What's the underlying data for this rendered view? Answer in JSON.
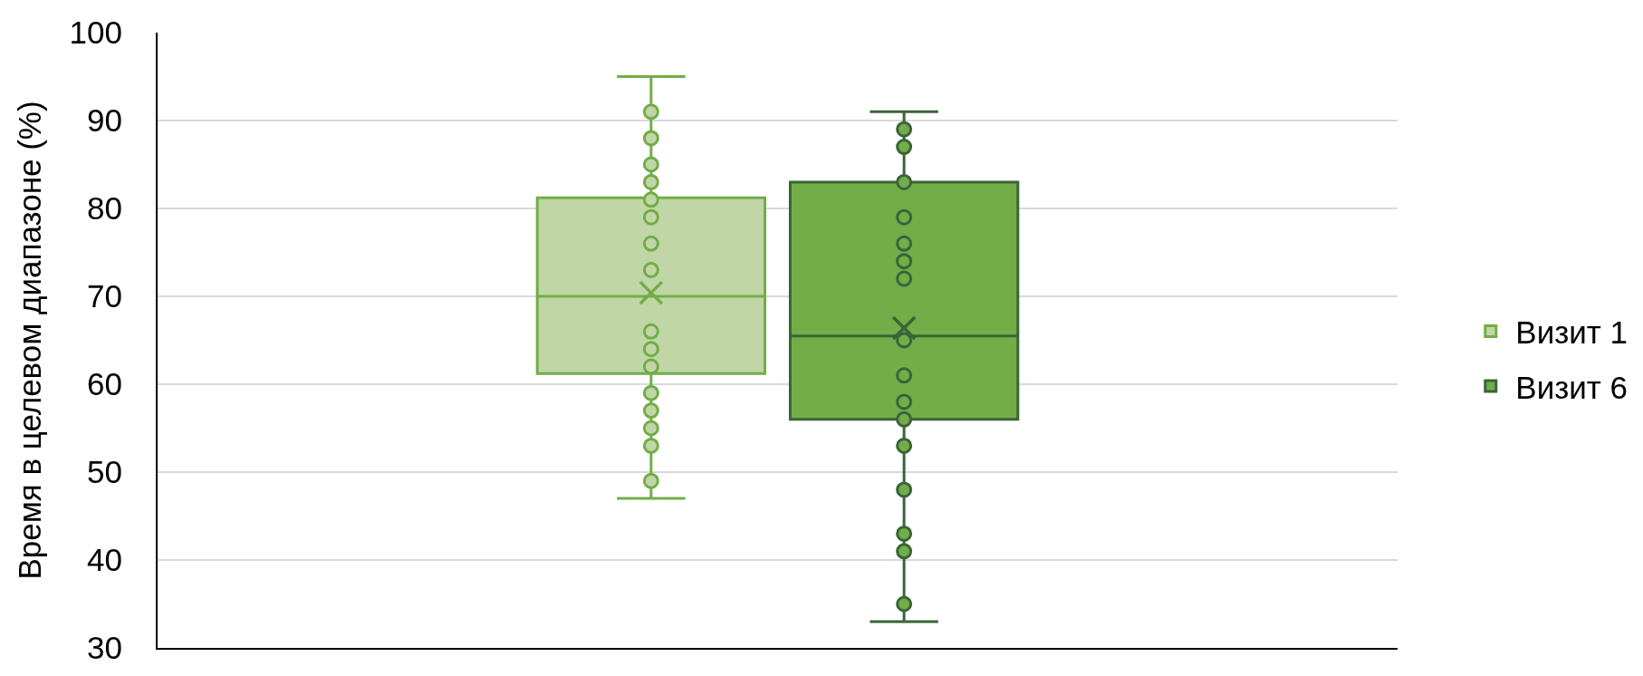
{
  "chart_data": {
    "type": "box",
    "ylabel": "Время в целевом диапазоне (%)",
    "categories": [
      null
    ],
    "series": [
      {
        "name": "Визит 1",
        "color": "#c1d6a7",
        "boxes": [
          {
            "low": 47,
            "q1": 61.2,
            "median": 70,
            "q3": 81.2,
            "high": 95,
            "mean": 70.4
          }
        ]
      },
      {
        "name": "Визит 6",
        "color": "#72ad48",
        "boxes": [
          {
            "low": 33,
            "q1": 56,
            "median": 65.5,
            "q3": 83,
            "high": 91,
            "mean": 66.4
          }
        ]
      },
      {
        "type": "scatter",
        "color": "#72ad48",
        "x": [
          null,
          null,
          null,
          null,
          null,
          null,
          null,
          null,
          null,
          null,
          null,
          null,
          null,
          null,
          null,
          null
        ],
        "values": [
          91,
          88,
          85,
          83,
          81,
          79,
          76,
          73,
          66,
          64,
          62,
          59,
          57,
          55,
          53,
          49
        ]
      },
      {
        "type": "scatter",
        "color": "#3a6439",
        "x": [
          null,
          null,
          null,
          null,
          null,
          null,
          null,
          null,
          null,
          null,
          null,
          null,
          null,
          null,
          null,
          null
        ],
        "values": [
          89,
          87,
          83,
          79,
          76,
          74,
          72,
          65,
          61,
          58,
          56,
          53,
          48,
          43,
          41,
          35
        ]
      }
    ],
    "ylim": [
      30,
      100
    ],
    "yticks": [
      30,
      40,
      50,
      60,
      70,
      80,
      90,
      100
    ],
    "grid": "y",
    "legend": "right",
    "tick_labels": "y",
    "marker": "circle"
  }
}
